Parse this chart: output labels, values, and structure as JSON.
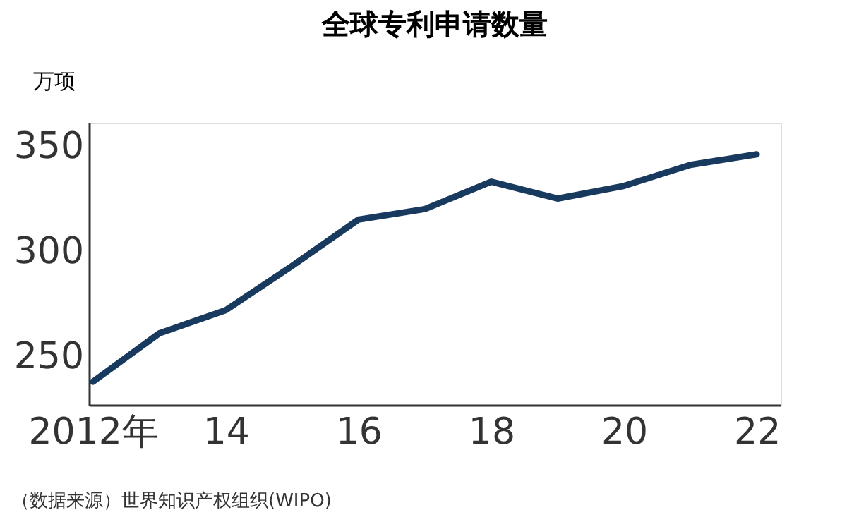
{
  "chart_data": {
    "type": "line",
    "title": "全球专利申请数量",
    "ylabel": "万项",
    "x": [
      2012,
      2013,
      2014,
      2015,
      2016,
      2017,
      2018,
      2019,
      2020,
      2021,
      2022
    ],
    "series": [
      {
        "color": "#173a5e",
        "values": [
          238,
          261,
          272,
          293,
          315,
          320,
          333,
          325,
          331,
          341,
          346
        ]
      }
    ],
    "xlim": [
      2011.94,
      2022.36
    ],
    "xticks": [
      {
        "value": 2012,
        "label": "2012年"
      },
      {
        "value": 2014,
        "label": "14"
      },
      {
        "value": 2016,
        "label": "16"
      },
      {
        "value": 2018,
        "label": "18"
      },
      {
        "value": 2020,
        "label": "20"
      },
      {
        "value": 2022,
        "label": "22"
      }
    ],
    "ylim": [
      227,
      361
    ],
    "yticks": [
      250,
      300,
      350
    ],
    "grid": false,
    "marker": "none",
    "line_style": "solid",
    "annotations": [
      "（数据来源）世界知识产权组织(WIPO)"
    ]
  }
}
